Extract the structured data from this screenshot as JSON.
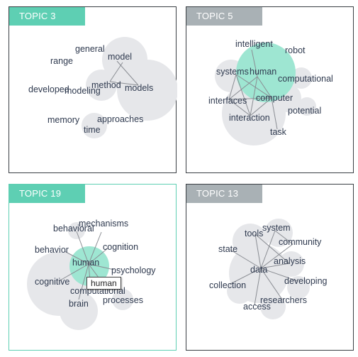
{
  "panels": [
    {
      "id": "topic-3",
      "title": "TOPIC 3",
      "tab_color": "#5ecfb3",
      "active": false,
      "words": [
        "general",
        "model",
        "range",
        "developed",
        "modeling",
        "method",
        "models",
        "memory",
        "approaches",
        "time"
      ]
    },
    {
      "id": "topic-5",
      "title": "TOPIC 5",
      "tab_color": "#a9b1b5",
      "active": false,
      "words": [
        "intelligent",
        "robot",
        "systems",
        "human",
        "computational",
        "interfaces",
        "computer",
        "potential",
        "interaction",
        "task"
      ]
    },
    {
      "id": "topic-19",
      "title": "TOPIC 19",
      "tab_color": "#5ecfb3",
      "active": true,
      "words": [
        "mechanisms",
        "behavioral",
        "cognition",
        "behavior",
        "human",
        "psychology",
        "cognitive",
        "computational",
        "processes",
        "brain"
      ],
      "tooltip": "human"
    },
    {
      "id": "topic-13",
      "title": "TOPIC 13",
      "tab_color": "#a9b1b5",
      "active": false,
      "words": [
        "system",
        "tools",
        "community",
        "state",
        "analysis",
        "data",
        "developing",
        "collection",
        "researchers",
        "access"
      ]
    }
  ],
  "colors": {
    "bubble_gray": "#e6e7ea",
    "bubble_highlight": "#9ee6d2",
    "link": "#8a8d93",
    "text": "#2f3a4f"
  }
}
